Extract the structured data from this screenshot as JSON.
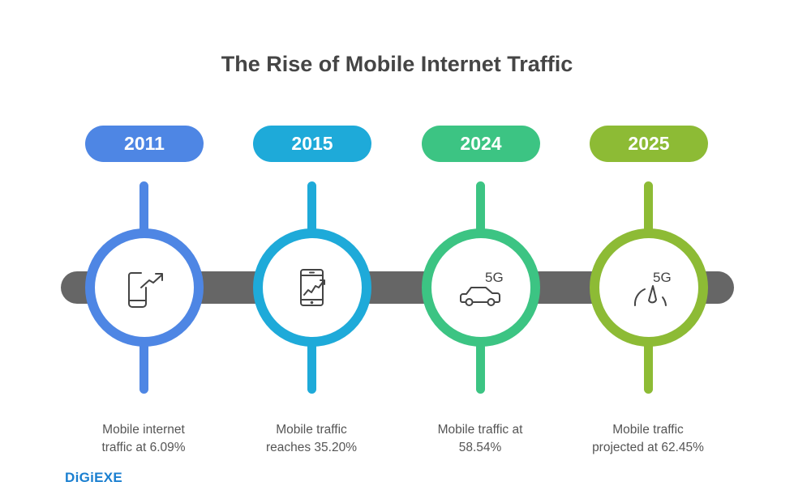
{
  "title": "The Rise of Mobile Internet Traffic",
  "milestones": [
    {
      "year": "2011",
      "color": "#4E86E4",
      "icon": "phone-trend-up-icon",
      "line1": "Mobile internet",
      "line2": "traffic at 6.09%"
    },
    {
      "year": "2015",
      "color": "#1EAAD9",
      "icon": "smartphone-chart-icon",
      "line1": "Mobile traffic",
      "line2": "reaches 35.20%"
    },
    {
      "year": "2024",
      "color": "#3CC483",
      "icon": "5g-car-icon",
      "icon_text": "5G",
      "line1": "Mobile traffic at",
      "line2": "58.54%"
    },
    {
      "year": "2025",
      "color": "#8DBB35",
      "icon": "5g-speedometer-icon",
      "icon_text": "5G",
      "line1": "Mobile traffic",
      "line2": "projected at 62.45%"
    }
  ],
  "timeline_color": "#666666",
  "logo": "DiGiEXE"
}
